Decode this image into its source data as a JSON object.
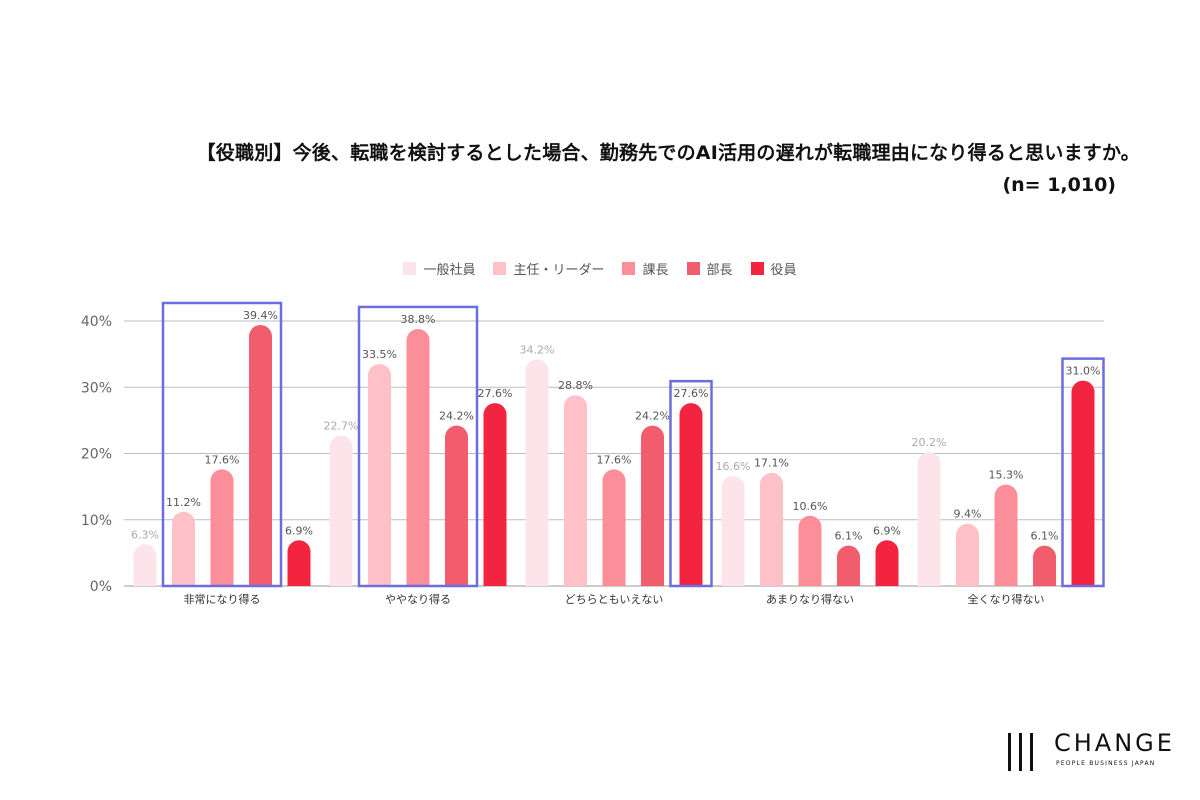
{
  "chart_data": {
    "type": "bar",
    "title": "【役職別】今後、転職を検討するとした場合、勤務先でのAI活用の遅れが転職理由になり得ると思いますか。",
    "subtitle": "(n= 1,010)",
    "categories": [
      "非常になり得る",
      "ややなり得る",
      "どちらともいえない",
      "あまりなり得ない",
      "全くなり得ない"
    ],
    "series": [
      {
        "name": "一般社員",
        "color": "#fde4ea",
        "label_color": "#aaaaaa",
        "values": [
          6.3,
          22.7,
          34.2,
          16.6,
          20.2
        ]
      },
      {
        "name": "主任・リーダー",
        "color": "#ffc0c8",
        "label_color": "#555555",
        "values": [
          11.2,
          33.5,
          28.8,
          17.1,
          9.4
        ]
      },
      {
        "name": "課長",
        "color": "#fb8e98",
        "label_color": "#555555",
        "values": [
          17.6,
          38.8,
          17.6,
          10.6,
          15.3
        ]
      },
      {
        "name": "部長",
        "color": "#f25d6e",
        "label_color": "#555555",
        "values": [
          39.4,
          24.2,
          24.2,
          6.1,
          6.1
        ]
      },
      {
        "name": "役員",
        "color": "#f2243f",
        "label_color": "#555555",
        "values": [
          6.9,
          27.6,
          27.6,
          6.9,
          31.0
        ]
      }
    ],
    "ylim": [
      0,
      40
    ],
    "yticks": [
      0,
      10,
      20,
      30,
      40
    ],
    "ytick_labels": [
      "0%",
      "10%",
      "20%",
      "30%",
      "40%"
    ],
    "value_suffix": "%",
    "grid": true,
    "legend_position": "top",
    "highlight_color": "#6b6ee0",
    "highlights": [
      {
        "category": 0,
        "series_from": 1,
        "series_to": 3
      },
      {
        "category": 1,
        "series_from": 1,
        "series_to": 3
      },
      {
        "category": 2,
        "series_from": 4,
        "series_to": 4
      },
      {
        "category": 4,
        "series_from": 4,
        "series_to": 4
      }
    ]
  },
  "logo": {
    "word": "CHANGE",
    "tagline": "PEOPLE  BUSINESS  JAPAN"
  }
}
